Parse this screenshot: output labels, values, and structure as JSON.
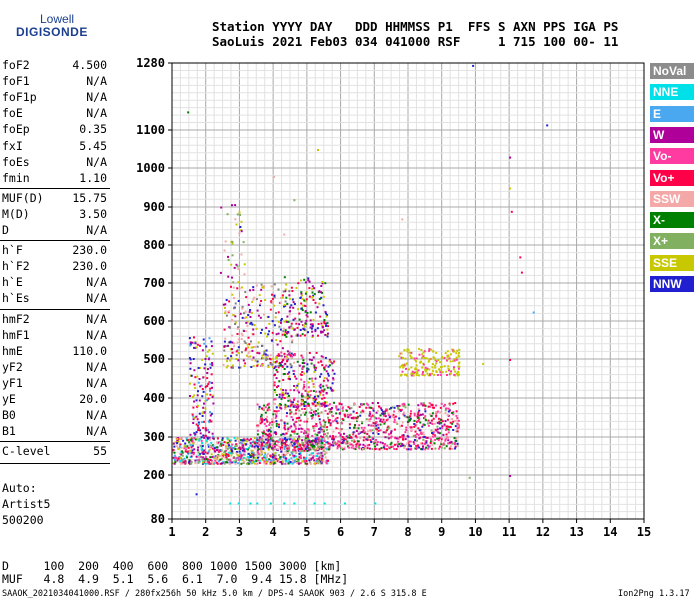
{
  "logo": {
    "line1": "Lowell",
    "line2": "DIGISONDE"
  },
  "header": {
    "line1": "Station YYYY DAY   DDD HHMMSS P1  FFS S AXN PPS IGA PS",
    "line2": "SaoLuis 2021 Feb03 034 041000 RSF     1 715 100 00- 11"
  },
  "params": [
    {
      "name": "foF2",
      "value": "4.500"
    },
    {
      "name": "foF1",
      "value": "N/A"
    },
    {
      "name": "foF1p",
      "value": "N/A"
    },
    {
      "name": "foE",
      "value": "N/A"
    },
    {
      "name": "foEp",
      "value": "0.35"
    },
    {
      "name": "fxI",
      "value": "5.45"
    },
    {
      "name": "foEs",
      "value": "N/A"
    },
    {
      "name": "fmin",
      "value": "1.10"
    },
    {
      "name": "MUF(D)",
      "value": "15.75"
    },
    {
      "name": "M(D)",
      "value": "3.50"
    },
    {
      "name": "D",
      "value": "N/A"
    },
    {
      "name": "h`F",
      "value": "230.0"
    },
    {
      "name": "h`F2",
      "value": "230.0"
    },
    {
      "name": "h`E",
      "value": "N/A"
    },
    {
      "name": "h`Es",
      "value": "N/A"
    },
    {
      "name": "hmF2",
      "value": "N/A"
    },
    {
      "name": "hmF1",
      "value": "N/A"
    },
    {
      "name": "hmE",
      "value": "110.0"
    },
    {
      "name": "yF2",
      "value": "N/A"
    },
    {
      "name": "yF1",
      "value": "N/A"
    },
    {
      "name": "yE",
      "value": "20.0"
    },
    {
      "name": "B0",
      "value": "N/A"
    },
    {
      "name": "B1",
      "value": "N/A"
    },
    {
      "name": "C-level",
      "value": "55"
    }
  ],
  "auto": {
    "line1": "Auto:",
    "line2": "Artist5",
    "line3": "500200"
  },
  "legend": [
    {
      "label": "NoVal",
      "color": "#8c8c8c",
      "text_color": "#ffffff"
    },
    {
      "label": "NNE",
      "color": "#00e0e8",
      "text_color": "#ffffff"
    },
    {
      "label": "E",
      "color": "#4aa8f0",
      "text_color": "#ffffff"
    },
    {
      "label": "W",
      "color": "#b0009a",
      "text_color": "#ffffff"
    },
    {
      "label": "Vo-",
      "color": "#ff3aa0",
      "text_color": "#ffffff"
    },
    {
      "label": "Vo+",
      "color": "#ff0048",
      "text_color": "#ffffff"
    },
    {
      "label": "SSW",
      "color": "#f4a8a8",
      "text_color": "#ffffff"
    },
    {
      "label": "X-",
      "color": "#008000",
      "text_color": "#ffffff"
    },
    {
      "label": "X+",
      "color": "#80b060",
      "text_color": "#ffffff"
    },
    {
      "label": "SSE",
      "color": "#c8c800",
      "text_color": "#ffffff"
    },
    {
      "label": "NNW",
      "color": "#2020d0",
      "text_color": "#ffffff"
    }
  ],
  "bottom": {
    "d_line": "D     100  200  400  600  800 1000 1500 3000 [km]",
    "muf_line": "MUF   4.8  4.9  5.1  5.6  6.1  7.0  9.4 15.8 [MHz]"
  },
  "footer": {
    "left": "SAAOK_2021034041000.RSF / 280fx256h 50 kHz 5.0 km / DPS-4 SAAOK 903 / 2.6 S 315.8 E",
    "right": "Ion2Png 1.3.17"
  },
  "chart_data": {
    "type": "scatter",
    "x_ticks": [
      "1",
      "2",
      "3",
      "4",
      "5",
      "6",
      "7",
      "8",
      "9",
      "10",
      "11",
      "12",
      "13",
      "14",
      "15"
    ],
    "y_ticks": [
      "80",
      "200",
      "300",
      "400",
      "500",
      "600",
      "700",
      "800",
      "900",
      "1000",
      "1100",
      "1280"
    ],
    "xlim": [
      1,
      15
    ],
    "ylim": [
      80,
      1280
    ],
    "grid": true,
    "legend_position": "right",
    "clusters": [
      {
        "x_min": 1.0,
        "x_max": 5.6,
        "y_min": 232,
        "y_max": 300,
        "count": 900,
        "colors": [
          "#ff3aa0",
          "#ff0048",
          "#b0009a",
          "#008000",
          "#2020d0",
          "#4aa8f0",
          "#00e0e8",
          "#80b060",
          "#c8c800",
          "#f4a8a8"
        ]
      },
      {
        "x_min": 3.5,
        "x_max": 9.5,
        "y_min": 270,
        "y_max": 390,
        "count": 1100,
        "colors": [
          "#ff3aa0",
          "#ff0048",
          "#b0009a",
          "#ff3aa0",
          "#ff0048",
          "#008000",
          "#2020d0",
          "#80b060",
          "#f4a8a8"
        ]
      },
      {
        "x_min": 4.0,
        "x_max": 5.8,
        "y_min": 380,
        "y_max": 520,
        "count": 260,
        "colors": [
          "#ff3aa0",
          "#ff0048",
          "#b0009a",
          "#2020d0",
          "#008000",
          "#c8c800"
        ]
      },
      {
        "x_min": 1.5,
        "x_max": 2.2,
        "y_min": 300,
        "y_max": 560,
        "count": 150,
        "colors": [
          "#2020d0",
          "#b0009a",
          "#ff0048",
          "#4aa8f0",
          "#c8c800"
        ]
      },
      {
        "x_min": 2.5,
        "x_max": 4.6,
        "y_min": 480,
        "y_max": 700,
        "count": 300,
        "colors": [
          "#b0009a",
          "#2020d0",
          "#f4a8a8",
          "#ff0048",
          "#808080",
          "#c8c800"
        ]
      },
      {
        "x_min": 4.3,
        "x_max": 5.6,
        "y_min": 560,
        "y_max": 720,
        "count": 160,
        "colors": [
          "#c8c800",
          "#ff0048",
          "#b0009a",
          "#2020d0",
          "#008000"
        ]
      },
      {
        "x_min": 7.7,
        "x_max": 9.5,
        "y_min": 460,
        "y_max": 530,
        "count": 180,
        "colors": [
          "#c8c800",
          "#c8c800",
          "#c8c800",
          "#ff3aa0"
        ]
      },
      {
        "x_min": 2.4,
        "x_max": 3.2,
        "y_min": 700,
        "y_max": 920,
        "count": 35,
        "colors": [
          "#f4a8a8",
          "#80b060",
          "#c8c800",
          "#b0009a"
        ]
      }
    ],
    "points": [
      {
        "x": 1.45,
        "y": 1150,
        "color": "#008000"
      },
      {
        "x": 9.9,
        "y": 1275,
        "color": "#2020d0"
      },
      {
        "x": 12.1,
        "y": 1115,
        "color": "#2020d0"
      },
      {
        "x": 11.0,
        "y": 1030,
        "color": "#b0009a"
      },
      {
        "x": 11.05,
        "y": 890,
        "color": "#ff0048"
      },
      {
        "x": 11.3,
        "y": 770,
        "color": "#ff0048"
      },
      {
        "x": 11.35,
        "y": 730,
        "color": "#ff0048"
      },
      {
        "x": 11.0,
        "y": 950,
        "color": "#c8c800"
      },
      {
        "x": 11.7,
        "y": 625,
        "color": "#4aa8f0"
      },
      {
        "x": 11.0,
        "y": 500,
        "color": "#ff0048"
      },
      {
        "x": 11.0,
        "y": 200,
        "color": "#b0009a"
      },
      {
        "x": 1.7,
        "y": 150,
        "color": "#2020d0"
      },
      {
        "x": 9.8,
        "y": 195,
        "color": "#80b060"
      },
      {
        "x": 5.3,
        "y": 1050,
        "color": "#c8c800"
      },
      {
        "x": 4.6,
        "y": 920,
        "color": "#80b060"
      },
      {
        "x": 4.0,
        "y": 980,
        "color": "#f4a8a8"
      },
      {
        "x": 4.3,
        "y": 830,
        "color": "#f4a8a8"
      },
      {
        "x": 3.0,
        "y": 850,
        "color": "#2020d0"
      },
      {
        "x": 10.2,
        "y": 490,
        "color": "#c8c800"
      },
      {
        "x": 7.8,
        "y": 870,
        "color": "#f4a8a8"
      },
      {
        "x": 2.7,
        "y": 125,
        "color": "#00e0e8"
      },
      {
        "x": 2.95,
        "y": 125,
        "color": "#00e0e8"
      },
      {
        "x": 3.3,
        "y": 125,
        "color": "#00e0e8"
      },
      {
        "x": 3.5,
        "y": 125,
        "color": "#00e0e8"
      },
      {
        "x": 3.9,
        "y": 125,
        "color": "#00e0e8"
      },
      {
        "x": 4.3,
        "y": 125,
        "color": "#00e0e8"
      },
      {
        "x": 4.6,
        "y": 125,
        "color": "#00e0e8"
      },
      {
        "x": 5.2,
        "y": 125,
        "color": "#00e0e8"
      },
      {
        "x": 5.5,
        "y": 125,
        "color": "#00e0e8"
      },
      {
        "x": 6.1,
        "y": 125,
        "color": "#00e0e8"
      },
      {
        "x": 7.0,
        "y": 125,
        "color": "#00e0e8"
      }
    ]
  }
}
